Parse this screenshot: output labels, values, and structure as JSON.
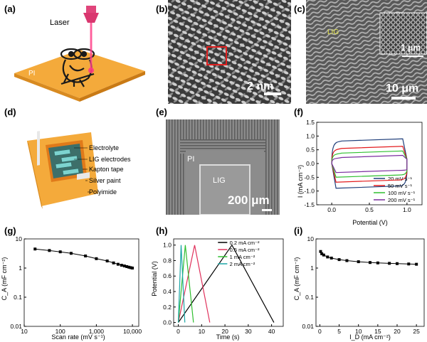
{
  "labels": {
    "a": "(a)",
    "b": "(b)",
    "c": "(c)",
    "d": "(d)",
    "e": "(e)",
    "f": "(f)",
    "g": "(g)",
    "h": "(h)",
    "i": "(i)"
  },
  "panel_a": {
    "laser_label": "Laser",
    "substrate_label": "PI"
  },
  "panel_b": {
    "scale_bar": "2 nm"
  },
  "panel_c": {
    "region_label": "LIG",
    "inset_scale": "1 μm",
    "scale_bar": "10 μm"
  },
  "panel_d": {
    "layers": [
      "Electrolyte",
      "LIG electrodes",
      "Kapton tape",
      "Silver paint",
      "Polyimide"
    ]
  },
  "panel_e": {
    "pi_label": "PI",
    "lig_label": "LIG",
    "scale_bar": "200 μm"
  },
  "colors": {
    "substrate": "#f3ac3a",
    "laser": "#e0457b",
    "cv_20": "#1f3e7a",
    "cv_50": "#e31a1c",
    "cv_100": "#2fbf2f",
    "cv_200": "#7a2c9e"
  },
  "chart_data": [
    {
      "id": "f",
      "type": "line",
      "xlabel": "Potential (V)",
      "ylabel": "I (mA cm⁻²)",
      "xlim": [
        -0.2,
        1.2
      ],
      "ylim": [
        -1.5,
        1.5
      ],
      "xticks": [
        "0.0",
        "0.5",
        "1.0"
      ],
      "yticks": [
        "1.5",
        "1.0",
        "0.5",
        "0.0",
        "-0.5",
        "-1.0",
        "-1.5"
      ],
      "series": [
        {
          "name": "20 mV s⁻¹",
          "upper": 0.82,
          "lower": -0.82
        },
        {
          "name": "50 mV s⁻¹",
          "upper": 0.55,
          "lower": -0.6
        },
        {
          "name": "100 mV s⁻¹",
          "upper": 0.38,
          "lower": -0.42
        },
        {
          "name": "200 mV s⁻¹",
          "upper": 0.22,
          "lower": -0.25
        }
      ]
    },
    {
      "id": "g",
      "type": "line",
      "xlabel": "Scan rate (mV s⁻¹)",
      "ylabel": "C_A (mF cm⁻²)",
      "xscale": "log",
      "yscale": "log",
      "xlim": [
        10,
        15000
      ],
      "ylim": [
        0.01,
        10
      ],
      "xticks": [
        "10",
        "100",
        "1,000",
        "10,000"
      ],
      "yticks": [
        "10",
        "1",
        "0.1",
        "0.01"
      ],
      "x": [
        20,
        50,
        100,
        200,
        500,
        1000,
        2000,
        3000,
        4000,
        5000,
        6000,
        7000,
        8000,
        9000,
        10000
      ],
      "values": [
        4.5,
        4.0,
        3.6,
        3.2,
        2.6,
        2.1,
        1.75,
        1.5,
        1.35,
        1.25,
        1.18,
        1.12,
        1.07,
        1.03,
        1.0
      ]
    },
    {
      "id": "h",
      "type": "line",
      "xlabel": "Time (s)",
      "ylabel": "Potential (V)",
      "xlim": [
        -2,
        45
      ],
      "ylim": [
        -0.05,
        1.08
      ],
      "xticks": [
        "0",
        "10",
        "20",
        "30",
        "40"
      ],
      "yticks": [
        "0.0",
        "0.2",
        "0.4",
        "0.6",
        "0.8",
        "1.0"
      ],
      "series": [
        {
          "name": "0.2 mA cm⁻²",
          "charge_end": 23,
          "discharge_end": 41
        },
        {
          "name": "0.5 mA cm⁻²",
          "charge_end": 7,
          "discharge_end": 13.5
        },
        {
          "name": "1 mA cm⁻²",
          "charge_end": 3,
          "discharge_end": 6.5
        },
        {
          "name": "2 mA cm⁻²",
          "charge_end": 1.2,
          "discharge_end": 2.8
        }
      ]
    },
    {
      "id": "i",
      "type": "line",
      "xlabel": "I_D (mA cm⁻²)",
      "ylabel": "C_A (mF cm⁻²)",
      "yscale": "log",
      "xlim": [
        -1,
        27
      ],
      "ylim": [
        0.01,
        10
      ],
      "xticks": [
        "0",
        "5",
        "10",
        "15",
        "20",
        "25"
      ],
      "yticks": [
        "10",
        "1",
        "0.1",
        "0.01"
      ],
      "x": [
        0.2,
        0.5,
        1,
        2,
        3,
        5,
        7,
        10,
        13,
        15,
        18,
        20,
        23,
        25
      ],
      "values": [
        3.7,
        3.1,
        2.8,
        2.4,
        2.2,
        1.95,
        1.8,
        1.65,
        1.55,
        1.5,
        1.45,
        1.42,
        1.38,
        1.35
      ]
    }
  ]
}
